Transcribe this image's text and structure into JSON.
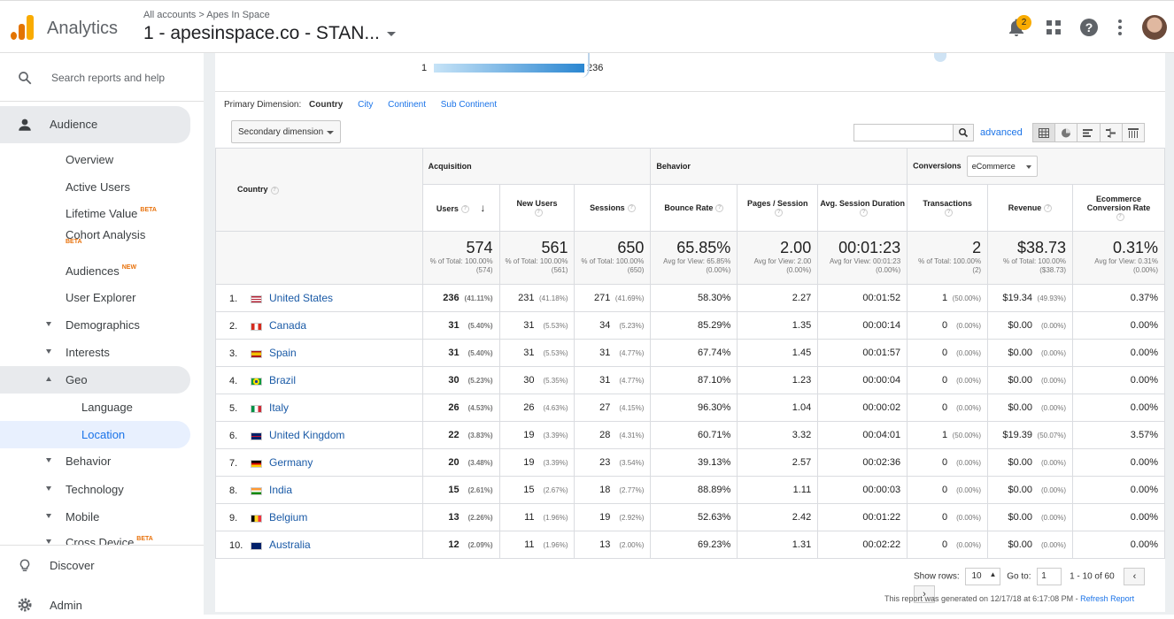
{
  "header": {
    "app_name": "Analytics",
    "breadcrumb": "All accounts  >  Apes In Space",
    "view_name": "1 - apesinspace.co - STAN...",
    "notifications_count": "2"
  },
  "sidebar": {
    "search_label": "Search reports and help",
    "audience": "Audience",
    "overview": "Overview",
    "active_users": "Active Users",
    "lifetime_value": "Lifetime Value",
    "lifetime_badge": "BETA",
    "cohort": "Cohort Analysis",
    "cohort_badge": "BETA",
    "audiences": "Audiences",
    "audiences_badge": "NEW",
    "user_explorer": "User Explorer",
    "demographics": "Demographics",
    "interests": "Interests",
    "geo": "Geo",
    "language": "Language",
    "location": "Location",
    "behavior": "Behavior",
    "technology": "Technology",
    "mobile": "Mobile",
    "cross_device": "Cross Device",
    "cross_badge": "BETA",
    "discover": "Discover",
    "admin": "Admin"
  },
  "map": {
    "min": "1",
    "max": "236"
  },
  "dimensions": {
    "label": "Primary Dimension:",
    "current": "Country",
    "city": "City",
    "continent": "Continent",
    "sub_continent": "Sub Continent"
  },
  "toolbar": {
    "secondary": "Secondary dimension",
    "advanced": "advanced"
  },
  "table": {
    "groups": {
      "acquisition": "Acquisition",
      "behavior": "Behavior",
      "conversions": "Conversions",
      "conversions_select": "eCommerce"
    },
    "headers": {
      "country": "Country",
      "users": "Users",
      "new_users": "New Users",
      "sessions": "Sessions",
      "bounce": "Bounce Rate",
      "pages": "Pages / Session",
      "duration": "Avg. Session Duration",
      "transactions": "Transactions",
      "revenue": "Revenue",
      "conv_rate": "Ecommerce Conversion Rate"
    },
    "totals": {
      "users": "574",
      "users_sub": "% of Total: 100.00% (574)",
      "new_users": "561",
      "new_users_sub": "% of Total: 100.00% (561)",
      "sessions": "650",
      "sessions_sub": "% of Total: 100.00% (650)",
      "bounce": "65.85%",
      "bounce_sub": "Avg for View: 65.85% (0.00%)",
      "pages": "2.00",
      "pages_sub": "Avg for View: 2.00 (0.00%)",
      "duration": "00:01:23",
      "duration_sub": "Avg for View: 00:01:23 (0.00%)",
      "transactions": "2",
      "transactions_sub": "% of Total: 100.00% (2)",
      "revenue": "$38.73",
      "revenue_sub": "% of Total: 100.00% ($38.73)",
      "conv_rate": "0.31%",
      "conv_rate_sub": "Avg for View: 0.31% (0.00%)"
    },
    "rows": [
      {
        "idx": "1.",
        "country": "United States",
        "flag": "us",
        "users": "236",
        "users_pct": "(41.11%)",
        "new_users": "231",
        "new_users_pct": "(41.18%)",
        "sessions": "271",
        "sessions_pct": "(41.69%)",
        "bounce": "58.30%",
        "pages": "2.27",
        "duration": "00:01:52",
        "transactions": "1",
        "transactions_pct": "(50.00%)",
        "revenue": "$19.34",
        "revenue_pct": "(49.93%)",
        "conv_rate": "0.37%"
      },
      {
        "idx": "2.",
        "country": "Canada",
        "flag": "ca",
        "users": "31",
        "users_pct": "(5.40%)",
        "new_users": "31",
        "new_users_pct": "(5.53%)",
        "sessions": "34",
        "sessions_pct": "(5.23%)",
        "bounce": "85.29%",
        "pages": "1.35",
        "duration": "00:00:14",
        "transactions": "0",
        "transactions_pct": "(0.00%)",
        "revenue": "$0.00",
        "revenue_pct": "(0.00%)",
        "conv_rate": "0.00%"
      },
      {
        "idx": "3.",
        "country": "Spain",
        "flag": "es",
        "users": "31",
        "users_pct": "(5.40%)",
        "new_users": "31",
        "new_users_pct": "(5.53%)",
        "sessions": "31",
        "sessions_pct": "(4.77%)",
        "bounce": "67.74%",
        "pages": "1.45",
        "duration": "00:01:57",
        "transactions": "0",
        "transactions_pct": "(0.00%)",
        "revenue": "$0.00",
        "revenue_pct": "(0.00%)",
        "conv_rate": "0.00%"
      },
      {
        "idx": "4.",
        "country": "Brazil",
        "flag": "br",
        "users": "30",
        "users_pct": "(5.23%)",
        "new_users": "30",
        "new_users_pct": "(5.35%)",
        "sessions": "31",
        "sessions_pct": "(4.77%)",
        "bounce": "87.10%",
        "pages": "1.23",
        "duration": "00:00:04",
        "transactions": "0",
        "transactions_pct": "(0.00%)",
        "revenue": "$0.00",
        "revenue_pct": "(0.00%)",
        "conv_rate": "0.00%"
      },
      {
        "idx": "5.",
        "country": "Italy",
        "flag": "it",
        "users": "26",
        "users_pct": "(4.53%)",
        "new_users": "26",
        "new_users_pct": "(4.63%)",
        "sessions": "27",
        "sessions_pct": "(4.15%)",
        "bounce": "96.30%",
        "pages": "1.04",
        "duration": "00:00:02",
        "transactions": "0",
        "transactions_pct": "(0.00%)",
        "revenue": "$0.00",
        "revenue_pct": "(0.00%)",
        "conv_rate": "0.00%"
      },
      {
        "idx": "6.",
        "country": "United Kingdom",
        "flag": "gb",
        "users": "22",
        "users_pct": "(3.83%)",
        "new_users": "19",
        "new_users_pct": "(3.39%)",
        "sessions": "28",
        "sessions_pct": "(4.31%)",
        "bounce": "60.71%",
        "pages": "3.32",
        "duration": "00:04:01",
        "transactions": "1",
        "transactions_pct": "(50.00%)",
        "revenue": "$19.39",
        "revenue_pct": "(50.07%)",
        "conv_rate": "3.57%"
      },
      {
        "idx": "7.",
        "country": "Germany",
        "flag": "de",
        "users": "20",
        "users_pct": "(3.48%)",
        "new_users": "19",
        "new_users_pct": "(3.39%)",
        "sessions": "23",
        "sessions_pct": "(3.54%)",
        "bounce": "39.13%",
        "pages": "2.57",
        "duration": "00:02:36",
        "transactions": "0",
        "transactions_pct": "(0.00%)",
        "revenue": "$0.00",
        "revenue_pct": "(0.00%)",
        "conv_rate": "0.00%"
      },
      {
        "idx": "8.",
        "country": "India",
        "flag": "in",
        "users": "15",
        "users_pct": "(2.61%)",
        "new_users": "15",
        "new_users_pct": "(2.67%)",
        "sessions": "18",
        "sessions_pct": "(2.77%)",
        "bounce": "88.89%",
        "pages": "1.11",
        "duration": "00:00:03",
        "transactions": "0",
        "transactions_pct": "(0.00%)",
        "revenue": "$0.00",
        "revenue_pct": "(0.00%)",
        "conv_rate": "0.00%"
      },
      {
        "idx": "9.",
        "country": "Belgium",
        "flag": "be",
        "users": "13",
        "users_pct": "(2.26%)",
        "new_users": "11",
        "new_users_pct": "(1.96%)",
        "sessions": "19",
        "sessions_pct": "(2.92%)",
        "bounce": "52.63%",
        "pages": "2.42",
        "duration": "00:01:22",
        "transactions": "0",
        "transactions_pct": "(0.00%)",
        "revenue": "$0.00",
        "revenue_pct": "(0.00%)",
        "conv_rate": "0.00%"
      },
      {
        "idx": "10.",
        "country": "Australia",
        "flag": "au",
        "users": "12",
        "users_pct": "(2.09%)",
        "new_users": "11",
        "new_users_pct": "(1.96%)",
        "sessions": "13",
        "sessions_pct": "(2.00%)",
        "bounce": "69.23%",
        "pages": "1.31",
        "duration": "00:02:22",
        "transactions": "0",
        "transactions_pct": "(0.00%)",
        "revenue": "$0.00",
        "revenue_pct": "(0.00%)",
        "conv_rate": "0.00%"
      }
    ]
  },
  "pager": {
    "show_rows_label": "Show rows:",
    "show_rows_value": "10",
    "goto_label": "Go to:",
    "goto_value": "1",
    "range": "1 - 10 of 60"
  },
  "footer": {
    "generated": "This report was generated on 12/17/18 at 6:17:08 PM - ",
    "refresh": "Refresh Report"
  },
  "colors": {
    "accent": "#1a73e8",
    "logo_orange": "#f9ab00",
    "logo_dark": "#e37400"
  }
}
